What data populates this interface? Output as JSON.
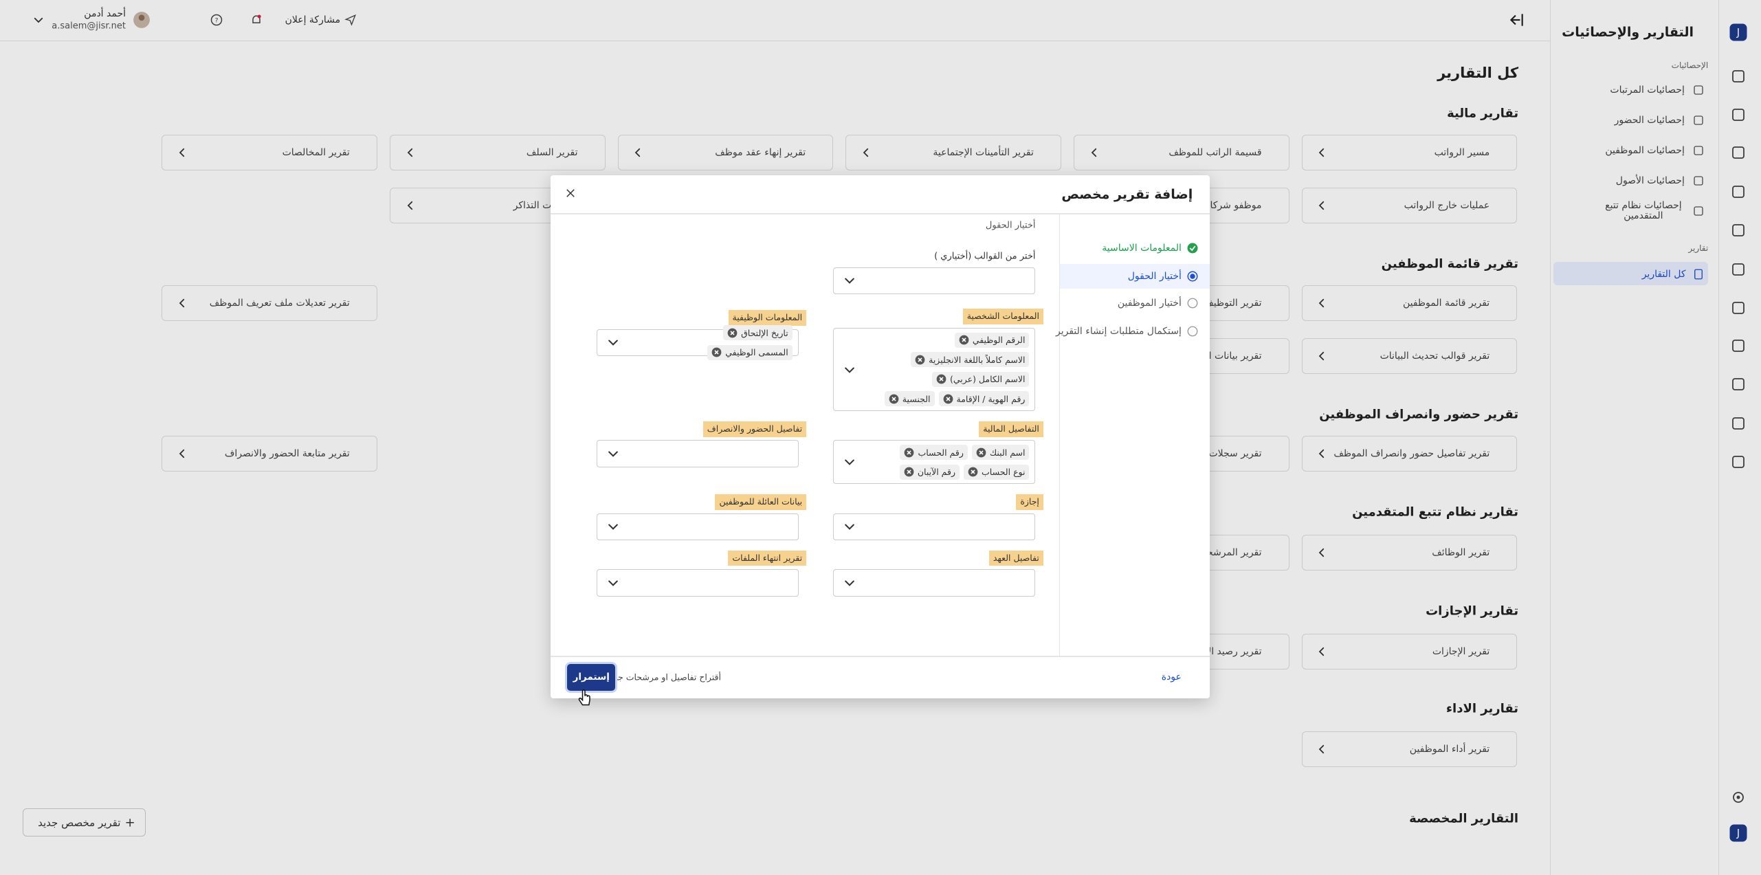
{
  "sidebar": {
    "title": "التقارير والإحصائيات",
    "stats_heading": "الإحصائيات",
    "stats_items": [
      "إحصائيات المرتبات",
      "إحصائيات الحضور",
      "إحصائيات الموظفين",
      "إحصائيات الأصول",
      "إحصائيات نظام تتبع المتقدمين"
    ],
    "reports_heading": "تقارير",
    "reports_items": [
      "كل التقارير"
    ]
  },
  "topbar": {
    "user_name": "أحمد أدمن",
    "user_email": "a.salem@jisr.net",
    "share": "مشاركة إعلان"
  },
  "page": {
    "title": "كل التقارير",
    "new_button": "تقرير مخصص جديد",
    "sections": [
      {
        "title": "تقارير مالية",
        "cards": [
          "مسير الرواتب",
          "قسيمة الراتب للموظف",
          "تقرير التأمينات الإجتماعية",
          "تقرير إنهاء عقد موظف",
          "تقرير السلف",
          "تقرير المخالصات",
          "عمليات خارج الرواتب",
          "موظفو شركات العمل",
          "تعويضات التذاكر"
        ]
      },
      {
        "title": "تقرير قائمة الموظفين",
        "cards": [
          "تقرير قائمة الموظفين",
          "تقرير التوظيف",
          "تقرير تعديلات ملف تعريف الموظف",
          "تقرير قوالب تحديث البيانات",
          "تقرير بيانات العائلة"
        ]
      },
      {
        "title": "تقرير حضور وانصراف الموظفين",
        "cards": [
          "تقرير تفاصيل حضور وانصراف الموظف",
          "تقرير سجلات الحضور",
          "تقرير متابعة الحضور والانصراف"
        ]
      },
      {
        "title": "تقارير نظام تتبع المتقدمين",
        "cards": [
          "تقرير الوظائف",
          "تقرير المرشحين"
        ]
      },
      {
        "title": "تقارير الإجازات",
        "cards": [
          "تقرير الإجازات",
          "تقرير رصيد الإجازات"
        ]
      },
      {
        "title": "تقارير الاداء",
        "cards": [
          "تقرير أداء الموظفين"
        ]
      },
      {
        "title": "التقارير المخصصة",
        "cards": []
      }
    ]
  },
  "modal": {
    "title": "إضافة تقرير مخصص",
    "steps": [
      "المعلومات الاساسية",
      "أختيار الحقول",
      "أختيار الموظفين",
      "إستكمال متطلبات إنشاء التقرير"
    ],
    "heading": "أختيار الحقول",
    "template_label": "أختر من القوالب (أختياري )",
    "groups": [
      {
        "label": "المعلومات الشخصية",
        "chips": [
          "الرقم الوظيفي",
          "الاسم كاملاً باللغة الانجليزية",
          "الاسم الكامل (عربي)",
          "رقم الهوية / الإقامة",
          "الجنسية"
        ]
      },
      {
        "label": "المعلومات الوظيفية",
        "chips": [
          "تاريخ الإلتحاق",
          "المسمى الوظيفي"
        ]
      },
      {
        "label": "التفاصيل المالية",
        "chips": [
          "اسم البنك",
          "رقم الحساب",
          "نوع الحساب",
          "رقم الآيبان"
        ]
      },
      {
        "label": "تفاصيل الحضور والانصراف",
        "chips": []
      },
      {
        "label": "إجازة",
        "chips": []
      },
      {
        "label": "بيانات العائلة للموظفين",
        "chips": []
      },
      {
        "label": "تفاصيل العهد",
        "chips": []
      },
      {
        "label": "تقرير انتهاء الملفات",
        "chips": []
      }
    ],
    "back": "عودة",
    "suggest": "أقتراح تفاصيل او مرشحات جديدة",
    "continue": "إستمرار"
  }
}
